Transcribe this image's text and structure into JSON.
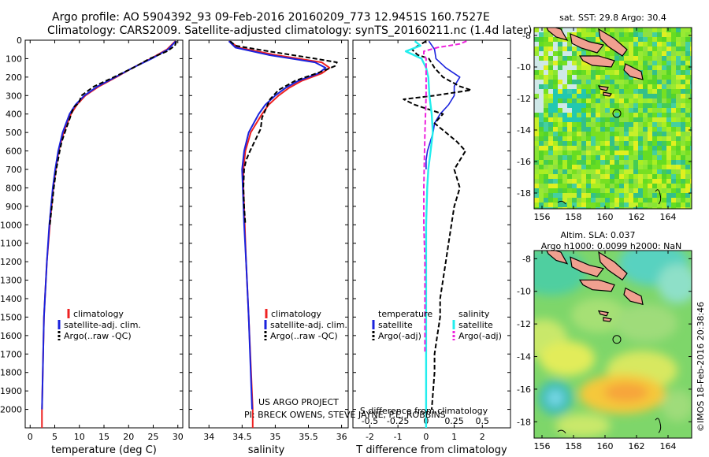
{
  "header": {
    "line1": "Argo profile: AO 5904392_93 09-Feb-2016 20160209_773 12.9451S 160.7527E",
    "line2": "Climatology: CARS2009. Satellite-adjusted climatology: synTS_20160211.nc (1.4d later)"
  },
  "colors": {
    "climatology": "#ee2222",
    "satellite": "#1a22dd",
    "argo": "#000000",
    "salinity_satellite": "#22eeee",
    "salinity_argo": "#ee22dd",
    "land": "#f0a090"
  },
  "project": {
    "line1": "US ARGO PROJECT",
    "line2": "PI: BRECK OWENS, STEVE JAYNE, P.E. ROBBINS"
  },
  "footer": {
    "imos_stamp": "©IMOS 18-Feb-2016 20:38:46"
  },
  "chart_data": [
    {
      "type": "line",
      "id": "temperature",
      "xlabel": "temperature (deg C)",
      "ylabel": "",
      "xlim": [
        -1,
        31
      ],
      "ylim": [
        2100,
        0
      ],
      "xticks": [
        "0",
        "5",
        "10",
        "15",
        "20",
        "25",
        "30"
      ],
      "xtick_values": [
        0,
        5,
        10,
        15,
        20,
        25,
        30
      ],
      "yticks": [
        "0",
        "100",
        "200",
        "300",
        "400",
        "500",
        "600",
        "700",
        "800",
        "900",
        "1000",
        "1100",
        "1200",
        "1300",
        "1400",
        "1500",
        "1600",
        "1700",
        "1800",
        "1900",
        "2000"
      ],
      "ytick_values": [
        0,
        100,
        200,
        300,
        400,
        500,
        600,
        700,
        800,
        900,
        1000,
        1100,
        1200,
        1300,
        1400,
        1500,
        1600,
        1700,
        1800,
        1900,
        2000
      ],
      "legend": [
        "climatology",
        "satellite-adj. clim.",
        "Argo(..raw -QC)"
      ],
      "series": [
        {
          "name": "climatology",
          "depth": [
            5,
            50,
            100,
            150,
            200,
            250,
            300,
            350,
            400,
            500,
            600,
            700,
            800,
            1000,
            1200,
            1500,
            2000
          ],
          "values": [
            29.5,
            27.8,
            24.5,
            20.8,
            17.5,
            14.0,
            11.2,
            9.5,
            8.3,
            6.8,
            5.8,
            5.2,
            4.7,
            4.0,
            3.4,
            2.8,
            2.4
          ]
        },
        {
          "name": "satellite-adj. clim.",
          "depth": [
            5,
            50,
            100,
            150,
            200,
            250,
            300,
            350,
            400,
            500,
            600,
            700,
            800,
            1000,
            1200,
            1500,
            2000
          ],
          "values": [
            29.6,
            28.0,
            24.7,
            20.8,
            17.3,
            13.7,
            11.0,
            9.2,
            8.0,
            6.6,
            5.7,
            5.1,
            4.6,
            3.9,
            3.4,
            2.8,
            2.4
          ]
        },
        {
          "name": "Argo(..raw -QC)",
          "depth": [
            5,
            30,
            60,
            100,
            150,
            200,
            250,
            300,
            340,
            360,
            380,
            420,
            480,
            550,
            600,
            700,
            800,
            900,
            1000
          ],
          "values": [
            29.7,
            29.4,
            27.8,
            24.3,
            20.9,
            17.0,
            13.0,
            10.4,
            9.9,
            9.0,
            8.6,
            8.1,
            7.3,
            6.4,
            6.0,
            5.3,
            4.8,
            4.4,
            4.0
          ]
        }
      ]
    },
    {
      "type": "line",
      "id": "salinity",
      "xlabel": "salinity",
      "ylabel": "",
      "xlim": [
        33.7,
        36.1
      ],
      "ylim": [
        2100,
        0
      ],
      "xticks": [
        "34",
        "34.5",
        "35",
        "35.5",
        "36"
      ],
      "xtick_values": [
        34,
        34.5,
        35,
        35.5,
        36
      ],
      "legend": [
        "climatology",
        "satellite-adj. clim.",
        "Argo(..raw -QC)"
      ],
      "series": [
        {
          "name": "climatology",
          "depth": [
            5,
            40,
            80,
            120,
            150,
            180,
            220,
            260,
            300,
            350,
            400,
            500,
            600,
            700,
            800,
            1000,
            1200,
            1500,
            2000
          ],
          "values": [
            34.3,
            34.45,
            35.0,
            35.7,
            35.82,
            35.7,
            35.4,
            35.2,
            35.05,
            34.9,
            34.8,
            34.63,
            34.55,
            34.52,
            34.52,
            34.54,
            34.56,
            34.6,
            34.66
          ]
        },
        {
          "name": "satellite-adj. clim.",
          "depth": [
            5,
            40,
            80,
            120,
            150,
            180,
            220,
            260,
            300,
            350,
            400,
            500,
            600,
            700,
            800,
            1000,
            1200,
            1500,
            2000
          ],
          "values": [
            34.3,
            34.4,
            34.9,
            35.6,
            35.76,
            35.65,
            35.35,
            35.15,
            35.0,
            34.85,
            34.75,
            34.6,
            34.53,
            34.5,
            34.51,
            34.53,
            34.56,
            34.6,
            34.65
          ]
        },
        {
          "name": "Argo(..raw -QC)",
          "depth": [
            5,
            30,
            60,
            100,
            120,
            140,
            170,
            220,
            270,
            320,
            380,
            420,
            480,
            540,
            600,
            650,
            700,
            800,
            900,
            1000
          ],
          "values": [
            34.32,
            34.4,
            34.9,
            35.6,
            35.93,
            35.9,
            35.7,
            35.3,
            35.05,
            34.92,
            34.85,
            34.8,
            34.78,
            34.7,
            34.62,
            34.56,
            34.53,
            34.52,
            34.53,
            34.55
          ]
        }
      ]
    },
    {
      "type": "line",
      "id": "differences",
      "xlabel": "T difference from climatology",
      "x2label": "S difference from climatology",
      "xlim": [
        -2.6,
        3.0
      ],
      "ylim": [
        2100,
        0
      ],
      "xticks": [
        "-2",
        "-1",
        "0",
        "1",
        "2"
      ],
      "xtick_values": [
        -2,
        -1,
        0,
        1,
        2
      ],
      "x2ticks": [
        "-0.5",
        "-0.25",
        "0",
        "0.25",
        "0.5"
      ],
      "x2tick_values": [
        -0.5,
        -0.25,
        0,
        0.25,
        0.5
      ],
      "legend_headers": [
        "temperature",
        "salinity"
      ],
      "legend": [
        "satellite",
        "Argo(-adj)",
        "satellite",
        "Argo(-adj)"
      ],
      "series": [
        {
          "name": "temperature satellite",
          "depth": [
            5,
            50,
            100,
            150,
            200,
            250,
            300,
            350,
            400,
            450,
            500,
            550,
            600,
            650,
            700
          ],
          "values": [
            0.1,
            0.3,
            0.35,
            0.7,
            1.2,
            1.0,
            1.0,
            0.8,
            0.5,
            0.3,
            0.25,
            0.15,
            0.05,
            0.0,
            0.0
          ]
        },
        {
          "name": "temperature Argo(-adj)",
          "depth": [
            5,
            50,
            80,
            100,
            150,
            200,
            250,
            270,
            300,
            320,
            350,
            400,
            450,
            500,
            550,
            600,
            700,
            800,
            900,
            1000,
            1100,
            1200,
            1300,
            1400,
            1500,
            1600,
            1700,
            1800,
            1900,
            2000
          ],
          "values": [
            0.0,
            -0.5,
            -0.3,
            0.1,
            0.3,
            0.6,
            1.2,
            1.6,
            0.3,
            -0.8,
            -0.4,
            0.6,
            0.3,
            0.7,
            1.1,
            1.4,
            1.0,
            1.2,
            1.0,
            0.9,
            0.8,
            0.7,
            0.6,
            0.5,
            0.5,
            0.4,
            0.3,
            0.3,
            0.25,
            0.2
          ]
        },
        {
          "name": "salinity satellite",
          "depth": [
            5,
            30,
            60,
            100,
            150,
            200,
            300,
            400,
            500,
            600,
            700,
            800,
            1000,
            1200,
            1500,
            2000
          ],
          "values": [
            -0.1,
            -0.05,
            -0.18,
            -0.04,
            0.0,
            0.02,
            0.03,
            0.05,
            0.06,
            0.04,
            0.02,
            0.01,
            0.0,
            0.0,
            0.0,
            0.0
          ]
        },
        {
          "name": "salinity Argo(-adj)",
          "depth": [
            5,
            20,
            40,
            60,
            80,
            100,
            150,
            200,
            300,
            500,
            800,
            1000,
            1200,
            1500,
            1700
          ],
          "values": [
            0.36,
            0.3,
            0.1,
            -0.02,
            -0.02,
            0.0,
            0.0,
            0.0,
            0.0,
            -0.01,
            -0.02,
            -0.02,
            -0.01,
            -0.01,
            -0.01
          ]
        }
      ]
    },
    {
      "type": "heatmap",
      "id": "sst_map",
      "title": "sat. SST: 29.8 Argo: 30.4",
      "xticks": [
        "156",
        "158",
        "160",
        "162",
        "164"
      ],
      "xtick_values": [
        156,
        158,
        160,
        162,
        164
      ],
      "yticks": [
        "-8",
        "-10",
        "-12",
        "-14",
        "-16",
        "-18"
      ],
      "ytick_values": [
        -8,
        -10,
        -12,
        -14,
        -16,
        -18
      ],
      "xlim": [
        155.5,
        165.5
      ],
      "ylim": [
        -19,
        -7.5
      ],
      "marker": {
        "lon": 160.75,
        "lat": -12.95
      }
    },
    {
      "type": "heatmap",
      "id": "sla_map",
      "title": "Altim. SLA: 0.037",
      "subtitle": "Argo h1000: 0.0099 h2000: NaN",
      "xticks": [
        "156",
        "158",
        "160",
        "162",
        "164"
      ],
      "xtick_values": [
        156,
        158,
        160,
        162,
        164
      ],
      "yticks": [
        "-8",
        "-10",
        "-12",
        "-14",
        "-16",
        "-18"
      ],
      "ytick_values": [
        -8,
        -10,
        -12,
        -14,
        -16,
        -18
      ],
      "xlim": [
        155.5,
        165.5
      ],
      "ylim": [
        -19,
        -7.5
      ],
      "marker": {
        "lon": 160.75,
        "lat": -12.95
      }
    }
  ]
}
